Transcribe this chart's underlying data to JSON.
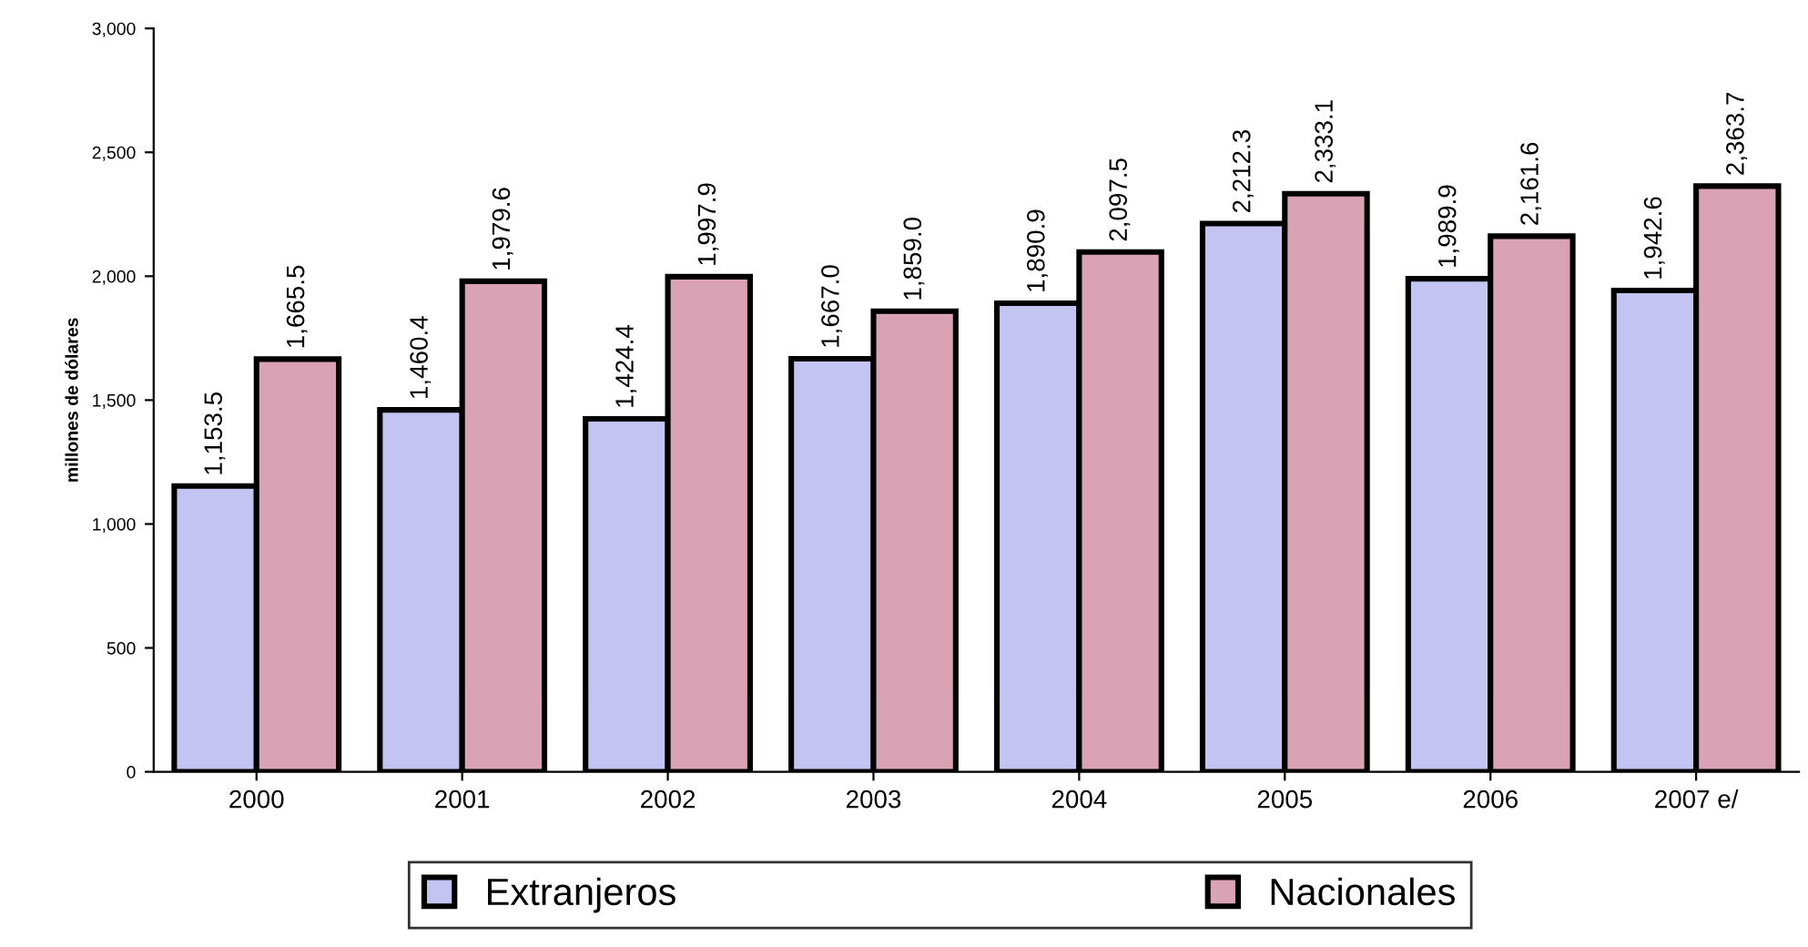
{
  "chart_data": {
    "type": "bar",
    "categories": [
      "2000",
      "2001",
      "2002",
      "2003",
      "2004",
      "2005",
      "2006",
      "2007 e/"
    ],
    "ylabel": "millones de dólares",
    "series": [
      {
        "name": "Extranjeros",
        "color": "#c4c4f2",
        "values": [
          1153.5,
          1460.4,
          1424.4,
          1667.0,
          1890.9,
          2212.3,
          1989.9,
          1942.6
        ],
        "value_labels": [
          "1,153.5",
          "1,460.4",
          "1,424.4",
          "1,667.0",
          "1,890.9",
          "2,212.3",
          "1,989.9",
          "1,942.6"
        ]
      },
      {
        "name": "Nacionales",
        "color": "#d9a3b5",
        "values": [
          1665.5,
          1979.6,
          1997.9,
          1859.0,
          2097.5,
          2333.1,
          2161.6,
          2363.7
        ],
        "value_labels": [
          "1,665.5",
          "1,979.6",
          "1,997.9",
          "1,859.0",
          "2,097.5",
          "2,333.1",
          "2,161.6",
          "2,363.7"
        ]
      }
    ],
    "ylim": [
      0,
      3000
    ],
    "yticks": [
      {
        "value": 0,
        "label": "0"
      },
      {
        "value": 500,
        "label": "500"
      },
      {
        "value": 1000,
        "label": "1,000"
      },
      {
        "value": 1500,
        "label": "1,500"
      },
      {
        "value": 2000,
        "label": "2,000"
      },
      {
        "value": 2500,
        "label": "2,500"
      },
      {
        "value": 3000,
        "label": "3,000"
      }
    ],
    "grid": false,
    "legend": "bottom"
  }
}
